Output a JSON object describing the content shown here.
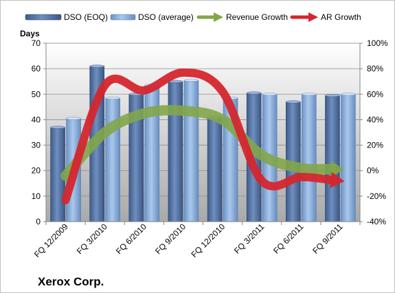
{
  "chart_data": {
    "type": "bar",
    "company": "Xerox Corp.",
    "y_left_title": "Days",
    "categories": [
      "FQ 12/2009",
      "FQ 3/2010",
      "FQ 6/2010",
      "FQ 9/2010",
      "FQ 12/2010",
      "FQ 3/2011",
      "FQ 6/2011",
      "FQ 9/2011"
    ],
    "series": [
      {
        "name": "DSO (EOQ)",
        "kind": "bar",
        "axis": "left",
        "color": "#4f6fa0",
        "values": [
          37,
          61,
          50,
          55,
          41,
          50.5,
          47,
          49.5
        ]
      },
      {
        "name": "DSO (average)",
        "kind": "bar",
        "axis": "left",
        "color": "#7ea6d6",
        "values": [
          40.5,
          48.5,
          53.5,
          55.5,
          48.5,
          50,
          50,
          50
        ]
      },
      {
        "name": "Revenue Growth",
        "kind": "arrow-line",
        "axis": "right",
        "color": "#82a64a",
        "values": [
          -4,
          30,
          45,
          47,
          40,
          12,
          2,
          1
        ]
      },
      {
        "name": "AR Growth",
        "kind": "arrow-line",
        "axis": "right",
        "color": "#d4262e",
        "values": [
          -23,
          67,
          63,
          77,
          62,
          -8,
          -5,
          -8
        ]
      }
    ],
    "y_left": {
      "min": 0,
      "max": 70,
      "step": 10,
      "ticks": [
        "0",
        "10",
        "20",
        "30",
        "40",
        "50",
        "60",
        "70"
      ]
    },
    "y_right": {
      "min": -40,
      "max": 100,
      "step": 20,
      "ticks": [
        "-40%",
        "-20%",
        "0%",
        "20%",
        "40%",
        "60%",
        "80%",
        "100%"
      ]
    },
    "grid": true,
    "legend": "top"
  }
}
